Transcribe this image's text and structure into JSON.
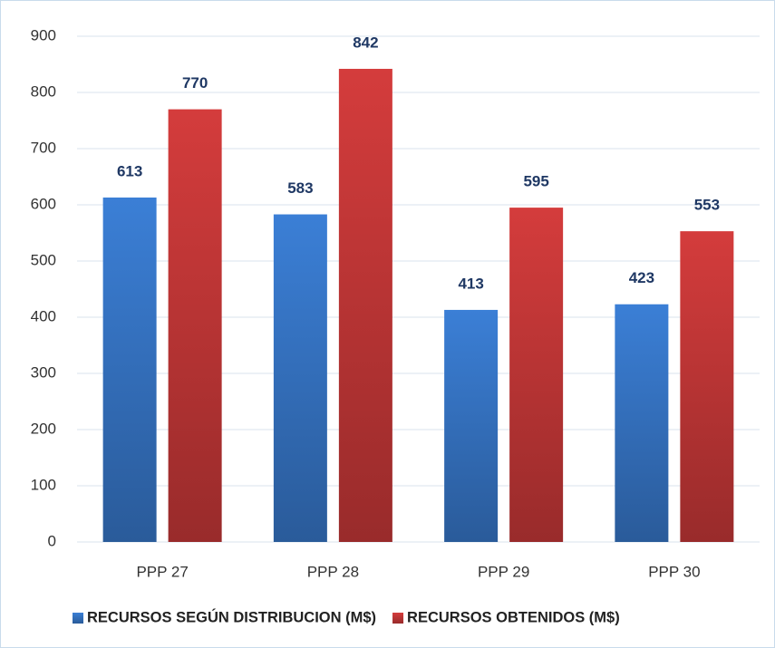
{
  "chart_data": {
    "type": "bar",
    "categories": [
      "PPP 27",
      "PPP 28",
      "PPP 29",
      "PPP 30"
    ],
    "series": [
      {
        "name": "RECURSOS SEGÚN DISTRIBUCION (M$)",
        "color": "#3b7fd6",
        "values": [
          613,
          583,
          413,
          423
        ]
      },
      {
        "name": "RECURSOS OBTENIDOS (M$)",
        "color": "#d43c3c",
        "values": [
          770,
          842,
          595,
          553
        ]
      }
    ],
    "ylim": [
      0,
      900
    ],
    "yticks": [
      0,
      100,
      200,
      300,
      400,
      500,
      600,
      700,
      800,
      900
    ],
    "grid": true,
    "legend": "bottom"
  }
}
